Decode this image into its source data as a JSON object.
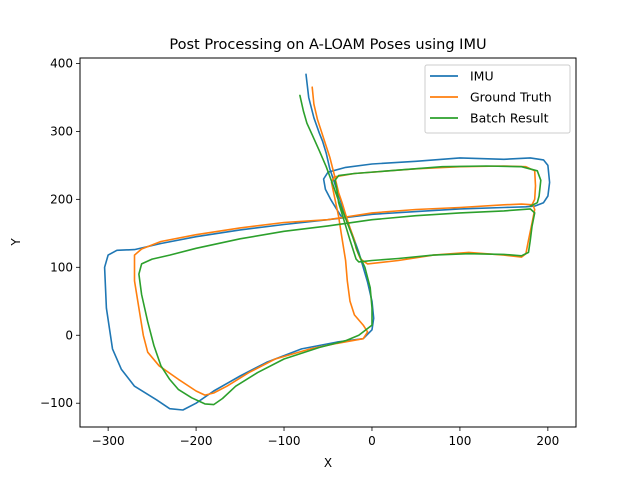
{
  "chart_data": {
    "type": "line",
    "title": "Post Processing on A-LOAM Poses using IMU",
    "xlabel": "X",
    "ylabel": "Y",
    "xlim": [
      -332,
      232
    ],
    "ylim": [
      -135,
      408
    ],
    "xticks": [
      -300,
      -200,
      -100,
      0,
      100,
      200
    ],
    "yticks": [
      -100,
      0,
      100,
      200,
      300,
      400
    ],
    "tick_labels_x": [
      "−300",
      "−200",
      "−100",
      "0",
      "100",
      "200"
    ],
    "tick_labels_y": [
      "−100",
      "0",
      "100",
      "200",
      "300",
      "400"
    ],
    "grid": false,
    "legend_position": "top-right",
    "series": [
      {
        "name": "IMU",
        "color": "#1f77b4",
        "points": [
          [
            -75,
            384
          ],
          [
            -72,
            350
          ],
          [
            -66,
            320
          ],
          [
            -60,
            298
          ],
          [
            -56,
            285
          ],
          [
            -52,
            268
          ],
          [
            -48,
            245
          ],
          [
            -42,
            222
          ],
          [
            -35,
            195
          ],
          [
            -28,
            168
          ],
          [
            -20,
            140
          ],
          [
            -15,
            122
          ],
          [
            -10,
            100
          ],
          [
            -5,
            78
          ],
          [
            0,
            50
          ],
          [
            2,
            25
          ],
          [
            0,
            8
          ],
          [
            -10,
            -5
          ],
          [
            -40,
            -10
          ],
          [
            -80,
            -20
          ],
          [
            -120,
            -40
          ],
          [
            -150,
            -60
          ],
          [
            -180,
            -82
          ],
          [
            -200,
            -100
          ],
          [
            -215,
            -110
          ],
          [
            -230,
            -108
          ],
          [
            -245,
            -95
          ],
          [
            -270,
            -75
          ],
          [
            -285,
            -50
          ],
          [
            -295,
            -20
          ],
          [
            -302,
            40
          ],
          [
            -304,
            100
          ],
          [
            -300,
            118
          ],
          [
            -290,
            125
          ],
          [
            -270,
            126
          ],
          [
            -240,
            135
          ],
          [
            -200,
            145
          ],
          [
            -150,
            155
          ],
          [
            -100,
            163
          ],
          [
            -50,
            170
          ],
          [
            0,
            178
          ],
          [
            50,
            182
          ],
          [
            100,
            186
          ],
          [
            150,
            188
          ],
          [
            175,
            189
          ],
          [
            185,
            190
          ],
          [
            195,
            195
          ],
          [
            200,
            205
          ],
          [
            202,
            225
          ],
          [
            200,
            250
          ],
          [
            195,
            258
          ],
          [
            180,
            261
          ],
          [
            150,
            259
          ],
          [
            100,
            261
          ],
          [
            50,
            256
          ],
          [
            0,
            252
          ],
          [
            -30,
            247
          ],
          [
            -50,
            240
          ],
          [
            -55,
            230
          ],
          [
            -53,
            215
          ],
          [
            -47,
            200
          ],
          [
            -40,
            185
          ],
          [
            -35,
            175
          ]
        ]
      },
      {
        "name": "Ground Truth",
        "color": "#ff7f0e",
        "points": [
          [
            -68,
            365
          ],
          [
            -66,
            340
          ],
          [
            -62,
            318
          ],
          [
            -55,
            290
          ],
          [
            -48,
            262
          ],
          [
            -42,
            232
          ],
          [
            -38,
            210
          ],
          [
            -34,
            195
          ],
          [
            -30,
            178
          ],
          [
            -25,
            158
          ],
          [
            -20,
            140
          ],
          [
            -18,
            128
          ],
          [
            -13,
            112
          ],
          [
            -5,
            105
          ],
          [
            30,
            110
          ],
          [
            70,
            118
          ],
          [
            110,
            122
          ],
          [
            150,
            118
          ],
          [
            170,
            115
          ],
          [
            175,
            120
          ],
          [
            178,
            140
          ],
          [
            182,
            165
          ],
          [
            185,
            185
          ],
          [
            183,
            192
          ],
          [
            170,
            193
          ],
          [
            150,
            192
          ],
          [
            100,
            188
          ],
          [
            50,
            185
          ],
          [
            0,
            180
          ],
          [
            -30,
            174
          ],
          [
            -50,
            170
          ],
          [
            -100,
            166
          ],
          [
            -150,
            158
          ],
          [
            -200,
            148
          ],
          [
            -240,
            138
          ],
          [
            -262,
            127
          ],
          [
            -270,
            118
          ],
          [
            -270,
            80
          ],
          [
            -265,
            40
          ],
          [
            -260,
            0
          ],
          [
            -255,
            -25
          ],
          [
            -242,
            -45
          ],
          [
            -220,
            -65
          ],
          [
            -200,
            -82
          ],
          [
            -190,
            -88
          ],
          [
            -180,
            -85
          ],
          [
            -165,
            -75
          ],
          [
            -140,
            -55
          ],
          [
            -110,
            -35
          ],
          [
            -70,
            -20
          ],
          [
            -40,
            -12
          ],
          [
            -10,
            -5
          ],
          [
            -5,
            5
          ],
          [
            -10,
            15
          ],
          [
            -20,
            30
          ],
          [
            -25,
            50
          ],
          [
            -28,
            80
          ],
          [
            -30,
            110
          ],
          [
            -35,
            150
          ],
          [
            -38,
            175
          ],
          [
            -42,
            200
          ],
          [
            -46,
            225
          ],
          [
            -43,
            233
          ],
          [
            -20,
            238
          ],
          [
            50,
            245
          ],
          [
            100,
            248
          ],
          [
            150,
            249
          ],
          [
            175,
            248
          ],
          [
            185,
            242
          ],
          [
            186,
            220
          ],
          [
            185,
            200
          ],
          [
            182,
            192
          ]
        ]
      },
      {
        "name": "Batch Result",
        "color": "#2ca02c",
        "points": [
          [
            -82,
            353
          ],
          [
            -78,
            330
          ],
          [
            -74,
            312
          ],
          [
            -68,
            295
          ],
          [
            -60,
            272
          ],
          [
            -52,
            248
          ],
          [
            -44,
            220
          ],
          [
            -38,
            198
          ],
          [
            -30,
            172
          ],
          [
            -22,
            145
          ],
          [
            -16,
            122
          ],
          [
            -8,
            100
          ],
          [
            -2,
            70
          ],
          [
            0,
            40
          ],
          [
            0,
            15
          ],
          [
            -5,
            10
          ],
          [
            -15,
            0
          ],
          [
            -30,
            -8
          ],
          [
            -60,
            -18
          ],
          [
            -100,
            -35
          ],
          [
            -130,
            -55
          ],
          [
            -155,
            -75
          ],
          [
            -170,
            -93
          ],
          [
            -180,
            -102
          ],
          [
            -190,
            -101
          ],
          [
            -205,
            -92
          ],
          [
            -220,
            -80
          ],
          [
            -230,
            -65
          ],
          [
            -240,
            -45
          ],
          [
            -248,
            -15
          ],
          [
            -255,
            20
          ],
          [
            -262,
            60
          ],
          [
            -265,
            90
          ],
          [
            -262,
            105
          ],
          [
            -250,
            112
          ],
          [
            -230,
            118
          ],
          [
            -200,
            128
          ],
          [
            -150,
            142
          ],
          [
            -100,
            153
          ],
          [
            -50,
            161
          ],
          [
            0,
            170
          ],
          [
            50,
            176
          ],
          [
            100,
            180
          ],
          [
            150,
            183
          ],
          [
            180,
            186
          ],
          [
            185,
            180
          ],
          [
            182,
            160
          ],
          [
            180,
            140
          ],
          [
            178,
            122
          ],
          [
            170,
            117
          ],
          [
            150,
            119
          ],
          [
            110,
            120
          ],
          [
            70,
            118
          ],
          [
            30,
            113
          ],
          [
            0,
            110
          ],
          [
            -15,
            108
          ],
          [
            -18,
            112
          ],
          [
            -25,
            140
          ],
          [
            -32,
            170
          ],
          [
            -38,
            195
          ],
          [
            -40,
            215
          ],
          [
            -42,
            228
          ],
          [
            -38,
            235
          ],
          [
            -20,
            238
          ],
          [
            30,
            243
          ],
          [
            80,
            248
          ],
          [
            130,
            249
          ],
          [
            170,
            248
          ],
          [
            188,
            242
          ],
          [
            192,
            228
          ],
          [
            190,
            205
          ],
          [
            188,
            195
          ],
          [
            180,
            190
          ]
        ]
      }
    ]
  }
}
